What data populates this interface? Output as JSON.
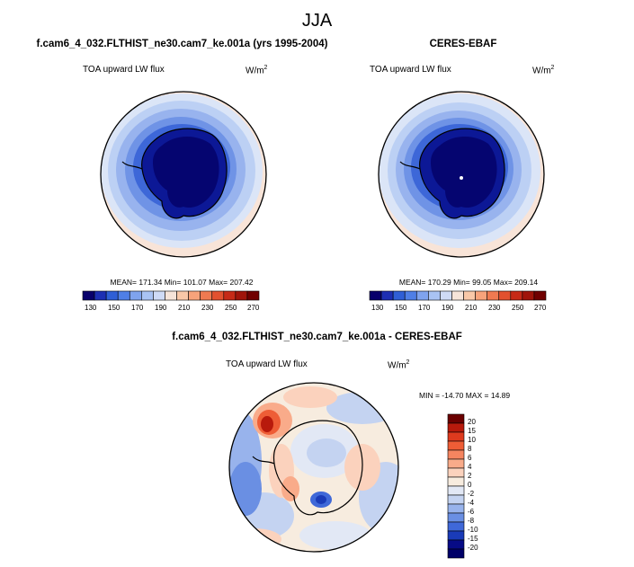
{
  "figure": {
    "season": "JJA"
  },
  "panels": {
    "model": {
      "title": "f.cam6_4_032.FLTHIST_ne30.cam7_ke.001a (yrs 1995-2004)",
      "variable": "TOA upward LW flux",
      "units": "W/m",
      "units_sup": "2",
      "stats": "MEAN= 171.34  Min= 101.07  Max= 207.42"
    },
    "obs": {
      "title": "CERES-EBAF",
      "variable": "TOA upward LW flux",
      "units": "W/m",
      "units_sup": "2",
      "stats": "MEAN= 170.29  Min=  99.05  Max= 209.14"
    },
    "diff": {
      "title": "f.cam6_4_032.FLTHIST_ne30.cam7_ke.001a - CERES-EBAF",
      "variable": "TOA upward LW flux",
      "units": "W/m",
      "units_sup": "2",
      "stats": "MIN = -14.70 MAX =  14.89"
    }
  },
  "colorbars": {
    "absolute": {
      "labels": [
        "130",
        "150",
        "170",
        "190",
        "210",
        "230",
        "250",
        "270"
      ],
      "colors": [
        "#08006b",
        "#1d2fb3",
        "#2f5fd6",
        "#4f7fe6",
        "#7fa3ee",
        "#a9c3f3",
        "#cfdbf6",
        "#f6e4d9",
        "#f9c8a8",
        "#f7a37b",
        "#ef7a51",
        "#e2512f",
        "#c62a17",
        "#a0140a",
        "#700000"
      ]
    },
    "difference": {
      "labels": [
        "20",
        "15",
        "10",
        "8",
        "6",
        "4",
        "2",
        "0",
        "-2",
        "-4",
        "-6",
        "-8",
        "-10",
        "-15",
        "-20"
      ],
      "colors": [
        "#6b0000",
        "#b81a0c",
        "#de3a1e",
        "#ee5d36",
        "#f58560",
        "#f9ab8a",
        "#fbd2bd",
        "#f7ecdf",
        "#e2e8f5",
        "#c4d3f1",
        "#98b3ec",
        "#6a8fe3",
        "#3f68d8",
        "#1a3bb8",
        "#070b86",
        "#000068"
      ]
    }
  }
}
